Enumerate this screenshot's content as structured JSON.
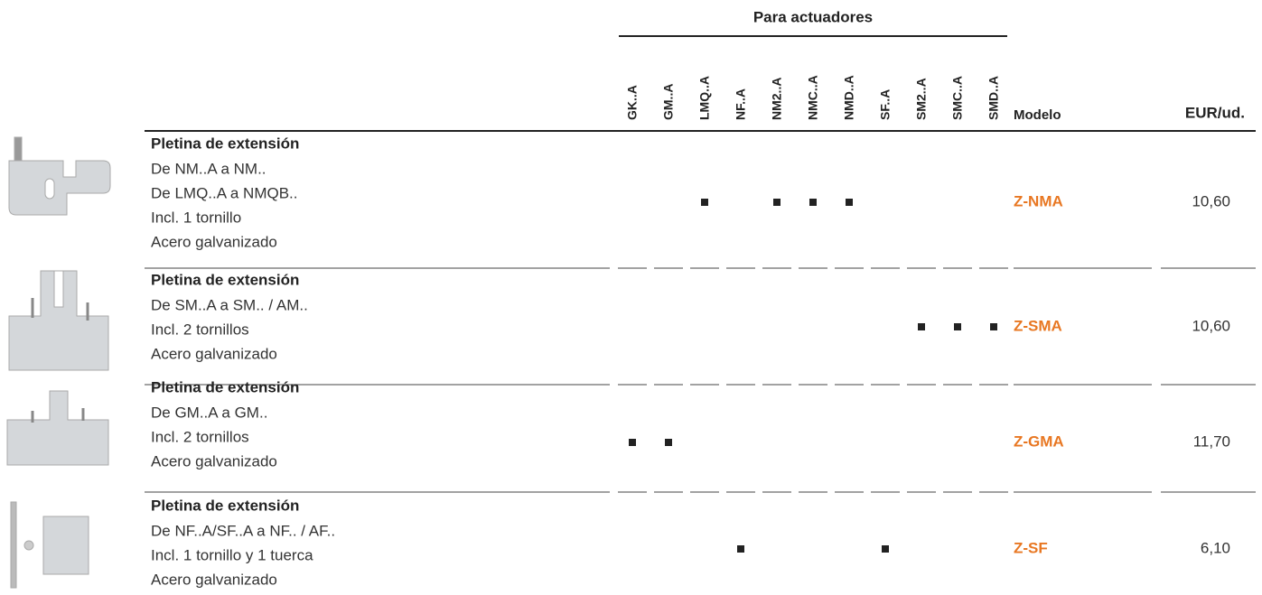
{
  "header": {
    "group_title": "Para actuadores",
    "columns": [
      "GK..A",
      "GM..A",
      "LMQ..A",
      "NF..A",
      "NM2..A",
      "NMC..A",
      "NMD..A",
      "SF..A",
      "SM2..A",
      "SMC..A",
      "SMD..A"
    ],
    "model_header": "Modelo",
    "price_header": "EUR/ud."
  },
  "rows": [
    {
      "title": "Pletina de extensión",
      "lines": [
        "De NM..A a NM..",
        "De LMQ..A a NMQB..",
        "Incl. 1 tornillo",
        "Acero galvanizado"
      ],
      "marks": [
        false,
        false,
        true,
        false,
        true,
        true,
        true,
        false,
        false,
        false,
        false
      ],
      "model": "Z-NMA",
      "price": "10,60"
    },
    {
      "title": "Pletina de extensión",
      "lines": [
        "De SM..A a SM.. / AM..",
        "Incl. 2 tornillos",
        "Acero galvanizado"
      ],
      "marks": [
        false,
        false,
        false,
        false,
        false,
        false,
        false,
        false,
        true,
        true,
        true
      ],
      "model": "Z-SMA",
      "price": "10,60"
    },
    {
      "title": "Pletina de extensión",
      "lines": [
        "De GM..A a GM..",
        "Incl. 2 tornillos",
        "Acero galvanizado"
      ],
      "marks": [
        true,
        true,
        false,
        false,
        false,
        false,
        false,
        false,
        false,
        false,
        false
      ],
      "model": "Z-GMA",
      "price": "11,70"
    },
    {
      "title": "Pletina de extensión",
      "lines": [
        "De NF..A/SF..A a NF.. / AF..",
        "Incl. 1 tornillo y 1 tuerca",
        "Acero galvanizado"
      ],
      "marks": [
        false,
        false,
        false,
        true,
        false,
        false,
        false,
        true,
        false,
        false,
        false
      ],
      "model": "Z-SF",
      "price": "6,10"
    }
  ]
}
